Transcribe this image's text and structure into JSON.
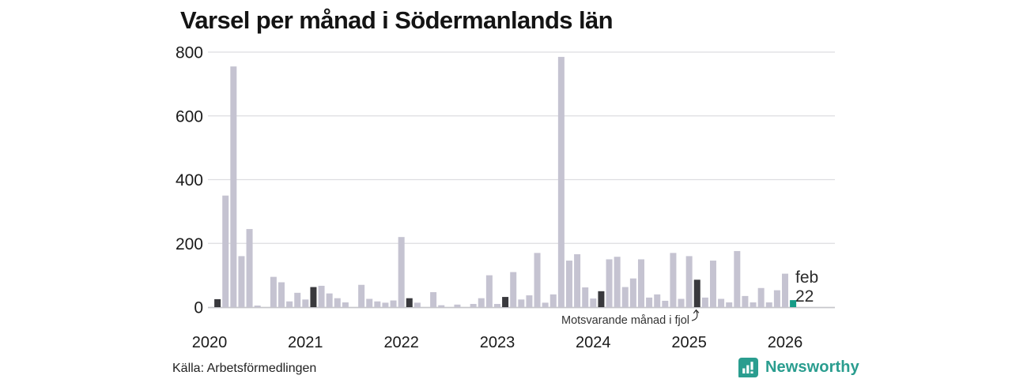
{
  "title": "Varsel per månad i Södermanlands län",
  "source": "Källa: Arbetsförmedlingen",
  "branding": {
    "logo_text": "Newsworthy",
    "color": "#2a9d8f"
  },
  "annotation": {
    "text": "Motsvarande månad i fjol"
  },
  "highlight_label": {
    "line1": "feb",
    "line2": "22"
  },
  "colors": {
    "bar": "#c5c3d1",
    "bar_dark": "#39393d",
    "bar_current": "#169c87",
    "grid": "#dddde1",
    "axis_line": "#c6c6cb",
    "text": "#1a1a1a"
  },
  "chart_data": {
    "type": "bar",
    "title": "Varsel per månad i Södermanlands län",
    "xlabel": "",
    "ylabel": "",
    "x_unit": "month",
    "x_start": "2020-02",
    "x_end": "2026-02",
    "x_tick_labels": [
      "2020",
      "2021",
      "2022",
      "2023",
      "2024",
      "2025",
      "2026"
    ],
    "ylim": [
      0,
      800
    ],
    "y_ticks": [
      0,
      200,
      400,
      600,
      800
    ],
    "grid": "horizontal",
    "legend": "none",
    "series": [
      {
        "name": "Varsel per månad",
        "values": [
          25,
          350,
          755,
          160,
          245,
          5,
          0,
          95,
          78,
          18,
          45,
          24,
          63,
          67,
          43,
          28,
          15,
          0,
          70,
          26,
          18,
          14,
          21,
          220,
          28,
          14,
          0,
          47,
          6,
          0,
          8,
          0,
          10,
          28,
          100,
          10,
          32,
          110,
          24,
          37,
          170,
          14,
          40,
          785,
          146,
          166,
          62,
          27,
          50,
          150,
          158,
          63,
          90,
          150,
          30,
          40,
          20,
          170,
          26,
          160,
          86,
          30,
          146,
          26,
          15,
          176,
          35,
          15,
          60,
          15,
          53,
          105,
          22
        ]
      }
    ],
    "highlight_dark_indices": [
      0,
      12,
      24,
      36,
      48,
      60
    ],
    "highlight_dark_meaning": "Motsvarande månad i fjol (februari tidigare år)",
    "highlight_current_index": 72,
    "highlight_current_label": "feb 22"
  }
}
